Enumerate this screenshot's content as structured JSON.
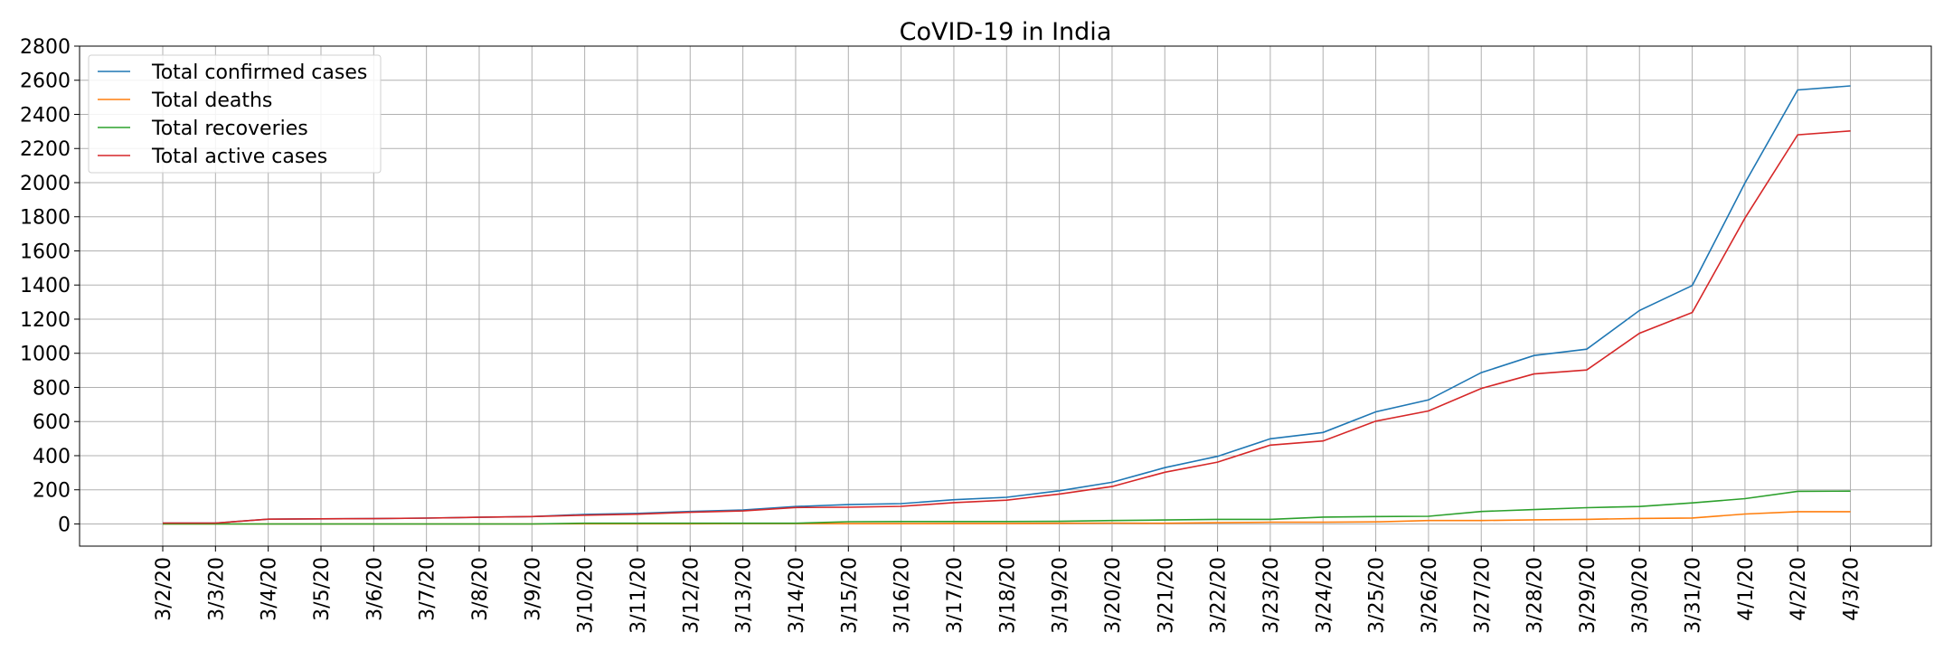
{
  "chart_data": {
    "type": "line",
    "title": "CoVID-19 in India",
    "xlabel": "",
    "ylabel": "",
    "ylim": [
      -130,
      2800
    ],
    "yticks": [
      0,
      200,
      400,
      600,
      800,
      1000,
      1200,
      1400,
      1600,
      1800,
      2000,
      2200,
      2400,
      2600,
      2800
    ],
    "grid": true,
    "legend_position": "top-left",
    "categories": [
      "3/2/20",
      "3/3/20",
      "3/4/20",
      "3/5/20",
      "3/6/20",
      "3/7/20",
      "3/8/20",
      "3/9/20",
      "3/10/20",
      "3/11/20",
      "3/12/20",
      "3/13/20",
      "3/14/20",
      "3/15/20",
      "3/16/20",
      "3/17/20",
      "3/18/20",
      "3/19/20",
      "3/20/20",
      "3/21/20",
      "3/22/20",
      "3/23/20",
      "3/24/20",
      "3/25/20",
      "3/26/20",
      "3/27/20",
      "3/28/20",
      "3/29/20",
      "3/30/20",
      "3/31/20",
      "4/1/20",
      "4/2/20",
      "4/3/20"
    ],
    "series": [
      {
        "name": "Total confirmed cases",
        "color": "#1f77b4",
        "values": [
          5,
          5,
          28,
          30,
          31,
          34,
          39,
          43,
          56,
          62,
          73,
          82,
          102,
          113,
          119,
          142,
          156,
          194,
          244,
          330,
          396,
          499,
          536,
          657,
          727,
          887,
          987,
          1024,
          1251,
          1397,
          1998,
          2543,
          2567
        ]
      },
      {
        "name": "Total deaths",
        "color": "#ff7f0e",
        "values": [
          0,
          0,
          0,
          0,
          0,
          0,
          0,
          0,
          1,
          1,
          1,
          2,
          2,
          2,
          2,
          3,
          3,
          4,
          5,
          4,
          7,
          10,
          10,
          12,
          20,
          20,
          24,
          27,
          32,
          35,
          58,
          72,
          72
        ]
      },
      {
        "name": "Total recoveries",
        "color": "#2ca02c",
        "values": [
          0,
          0,
          0,
          0,
          0,
          0,
          0,
          0,
          4,
          4,
          4,
          4,
          4,
          13,
          14,
          14,
          14,
          15,
          20,
          23,
          27,
          27,
          40,
          43,
          45,
          73,
          84,
          95,
          102,
          123,
          148,
          191,
          192
        ]
      },
      {
        "name": "Total active cases",
        "color": "#d62728",
        "values": [
          5,
          5,
          28,
          30,
          31,
          34,
          39,
          43,
          51,
          57,
          68,
          76,
          96,
          98,
          103,
          125,
          139,
          175,
          219,
          303,
          362,
          462,
          486,
          602,
          662,
          794,
          879,
          902,
          1117,
          1239,
          1792,
          2280,
          2303
        ]
      }
    ]
  }
}
